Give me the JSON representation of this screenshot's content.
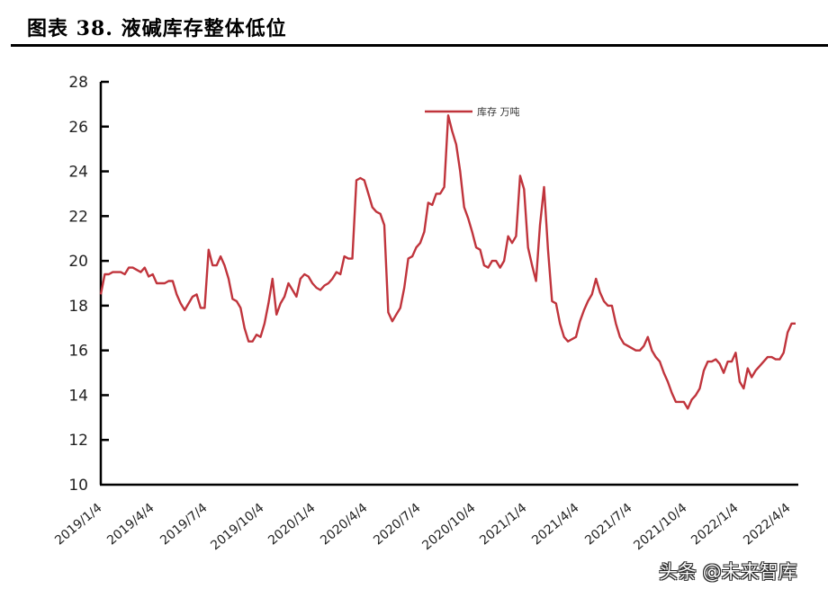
{
  "figure": {
    "title": "图表 38. 液碱库存整体低位",
    "watermark": "头条 @未来智库"
  },
  "legend": {
    "label": "库存 万吨",
    "color": "#c0343c"
  },
  "chart_data": {
    "type": "line",
    "title": "液碱库存整体低位",
    "xlabel": "",
    "ylabel": "",
    "ylim": [
      10,
      28
    ],
    "yticks": [
      10,
      12,
      14,
      16,
      18,
      20,
      22,
      24,
      26,
      28
    ],
    "xticks": [
      "2019/1/4",
      "2019/4/4",
      "2019/7/4",
      "2019/10/4",
      "2020/1/4",
      "2020/4/4",
      "2020/7/4",
      "2020/10/4",
      "2021/1/4",
      "2021/4/4",
      "2021/7/4",
      "2021/10/4",
      "2022/1/4",
      "2022/4/4"
    ],
    "grid": false,
    "legend_position": "top-center",
    "series": [
      {
        "name": "库存 万吨",
        "color": "#c0343c",
        "approx_weekly_values": [
          18.5,
          19.4,
          19.4,
          19.5,
          19.5,
          19.5,
          19.4,
          19.7,
          19.7,
          19.6,
          19.5,
          19.7,
          19.3,
          19.4,
          19.0,
          19.0,
          19.0,
          19.1,
          19.1,
          18.5,
          18.1,
          17.8,
          18.1,
          18.4,
          18.5,
          17.9,
          17.9,
          20.5,
          19.8,
          19.8,
          20.2,
          19.8,
          19.2,
          18.3,
          18.2,
          17.9,
          17.0,
          16.4,
          16.4,
          16.7,
          16.6,
          17.2,
          18.1,
          19.2,
          17.6,
          18.1,
          18.4,
          19.0,
          18.7,
          18.4,
          19.2,
          19.4,
          19.3,
          19.0,
          18.8,
          18.7,
          18.9,
          19.0,
          19.2,
          19.5,
          19.4,
          20.2,
          20.1,
          20.1,
          23.6,
          23.7,
          23.6,
          23.0,
          22.4,
          22.2,
          22.1,
          21.6,
          17.7,
          17.3,
          17.6,
          17.9,
          18.8,
          20.1,
          20.2,
          20.6,
          20.8,
          21.3,
          22.6,
          22.5,
          23.0,
          23.0,
          23.3,
          26.5,
          25.8,
          25.2,
          24.0,
          22.4,
          21.9,
          21.3,
          20.6,
          20.5,
          19.8,
          19.7,
          20.0,
          20.0,
          19.7,
          20.0,
          21.1,
          20.8,
          21.1,
          23.8,
          23.2,
          20.6,
          19.8,
          19.1,
          21.6,
          23.3,
          20.5,
          18.2,
          18.1,
          17.2,
          16.6,
          16.4,
          16.5,
          16.6,
          17.3,
          17.8,
          18.2,
          18.5,
          19.2,
          18.6,
          18.2,
          18.0,
          18.0,
          17.2,
          16.6,
          16.3,
          16.2,
          16.1,
          16.0,
          16.0,
          16.2,
          16.6,
          16.0,
          15.7,
          15.5,
          15.0,
          14.6,
          14.1,
          13.7,
          13.7,
          13.7,
          13.4,
          13.8,
          14.0,
          14.3,
          15.1,
          15.5,
          15.5,
          15.6,
          15.4,
          15.0,
          15.5,
          15.5,
          15.9,
          14.6,
          14.3,
          15.2,
          14.8,
          15.1,
          15.3,
          15.5,
          15.7,
          15.7,
          15.6,
          15.6,
          15.9,
          16.8,
          17.2,
          17.2
        ]
      }
    ],
    "annotations": {
      "peak_2020_09": 26.5,
      "low_2021_10": 13.4,
      "last_value": 17.2
    }
  }
}
